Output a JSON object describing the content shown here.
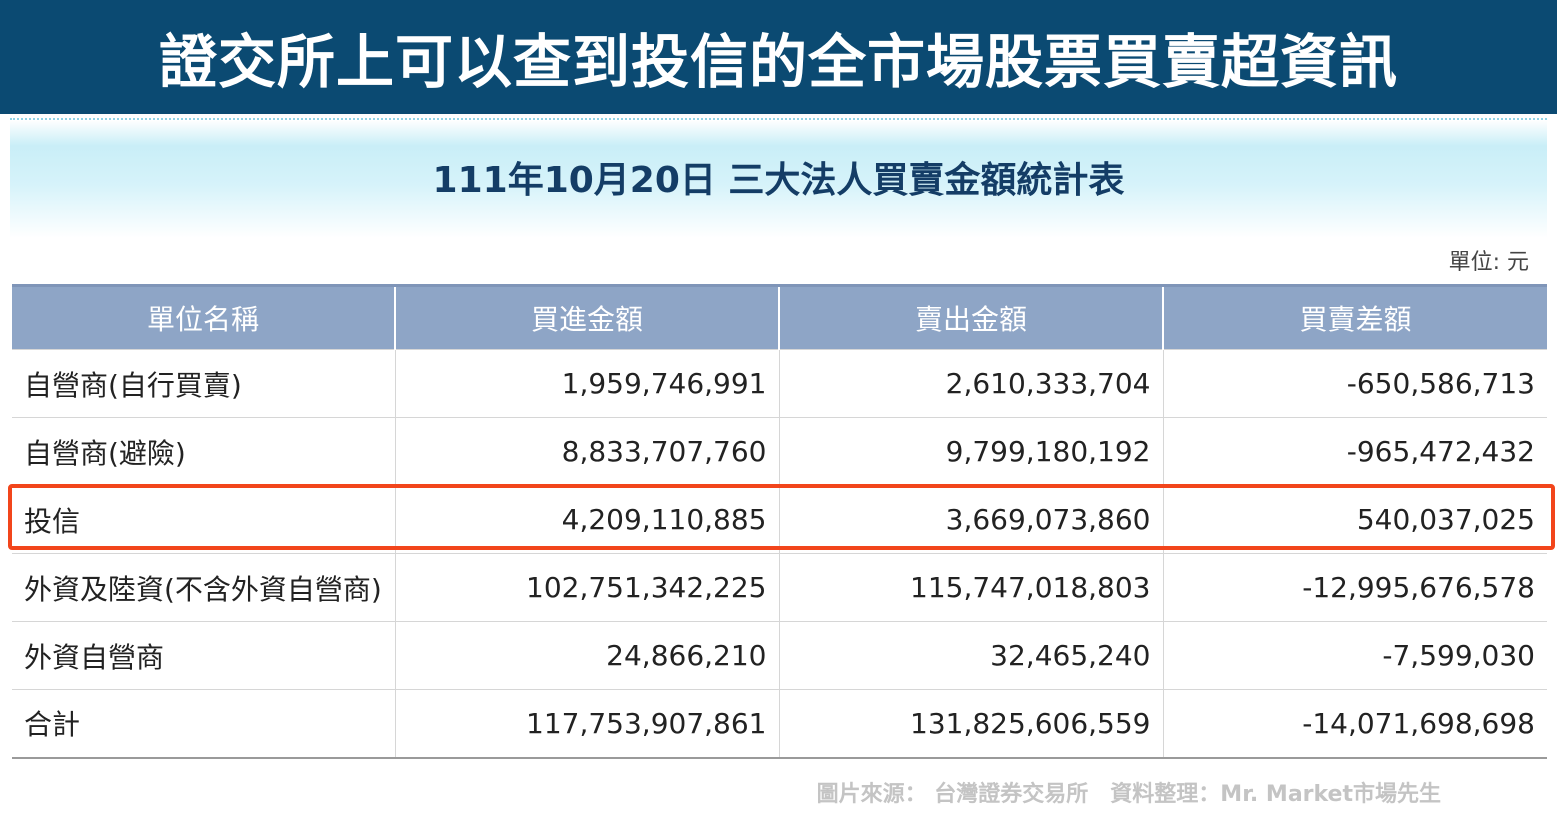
{
  "banner": {
    "title": "證交所上可以查到投信的全市場股票買賣超資訊"
  },
  "report": {
    "title": "111年10月20日 三大法人買賣金額統計表",
    "unit_note": "單位: 元"
  },
  "table": {
    "headers": [
      "單位名稱",
      "買進金額",
      "賣出金額",
      "買賣差額"
    ],
    "rows": [
      {
        "name": "自營商(自行買賣)",
        "buy": "1,959,746,991",
        "sell": "2,610,333,704",
        "diff": "-650,586,713"
      },
      {
        "name": "自營商(避險)",
        "buy": "8,833,707,760",
        "sell": "9,799,180,192",
        "diff": "-965,472,432"
      },
      {
        "name": "投信",
        "buy": "4,209,110,885",
        "sell": "3,669,073,860",
        "diff": "540,037,025"
      },
      {
        "name": "外資及陸資(不含外資自營商)",
        "buy": "102,751,342,225",
        "sell": "115,747,018,803",
        "diff": "-12,995,676,578"
      },
      {
        "name": "外資自營商",
        "buy": "24,866,210",
        "sell": "32,465,240",
        "diff": "-7,599,030"
      },
      {
        "name": "合計",
        "buy": "117,753,907,861",
        "sell": "131,825,606,559",
        "diff": "-14,071,698,698"
      }
    ]
  },
  "source": {
    "text": "圖片來源： 台灣證券交易所　資料整理：Mr. Market市場先生"
  },
  "colors": {
    "banner_bg": "#0b4a72",
    "header_bg": "#8ea5c6",
    "highlight": "#f2451b"
  }
}
